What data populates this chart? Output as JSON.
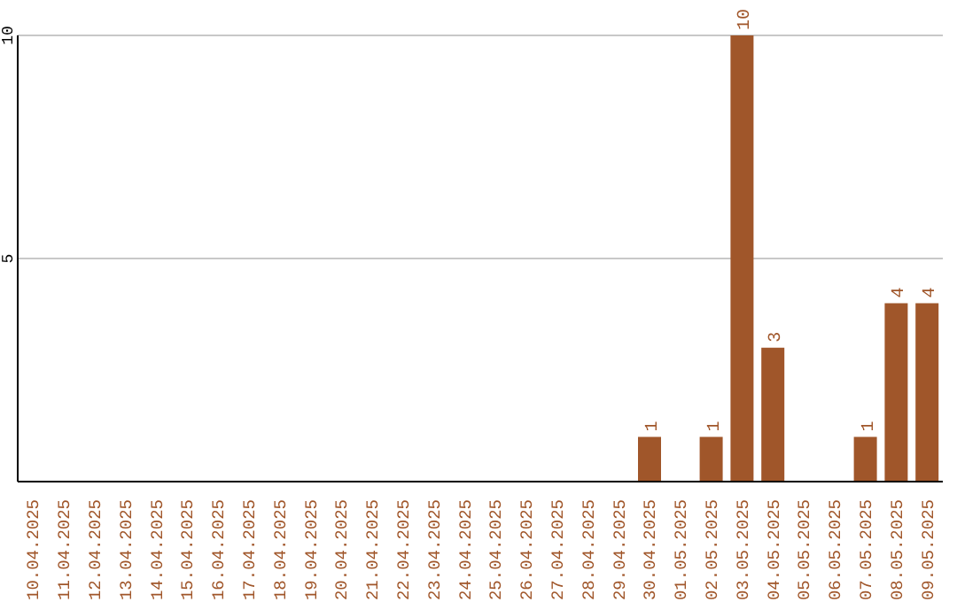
{
  "chart_data": {
    "type": "bar",
    "categories": [
      "10.04.2025",
      "11.04.2025",
      "12.04.2025",
      "13.04.2025",
      "14.04.2025",
      "15.04.2025",
      "16.04.2025",
      "17.04.2025",
      "18.04.2025",
      "19.04.2025",
      "20.04.2025",
      "21.04.2025",
      "22.04.2025",
      "23.04.2025",
      "24.04.2025",
      "25.04.2025",
      "26.04.2025",
      "27.04.2025",
      "28.04.2025",
      "29.04.2025",
      "30.04.2025",
      "01.05.2025",
      "02.05.2025",
      "03.05.2025",
      "04.05.2025",
      "05.05.2025",
      "06.05.2025",
      "07.05.2025",
      "08.05.2025",
      "09.05.2025"
    ],
    "values": [
      0,
      0,
      0,
      0,
      0,
      0,
      0,
      0,
      0,
      0,
      0,
      0,
      0,
      0,
      0,
      0,
      0,
      0,
      0,
      0,
      1,
      0,
      1,
      10,
      3,
      0,
      0,
      1,
      4,
      4
    ],
    "value_labels": [
      null,
      null,
      null,
      null,
      null,
      null,
      null,
      null,
      null,
      null,
      null,
      null,
      null,
      null,
      null,
      null,
      null,
      null,
      null,
      null,
      "1",
      null,
      "1",
      "10",
      "3",
      null,
      null,
      "1",
      "4",
      "4"
    ],
    "color": "#a0562a",
    "ylim": [
      0,
      10
    ],
    "yticks": [
      5,
      10
    ],
    "grid": "y"
  }
}
